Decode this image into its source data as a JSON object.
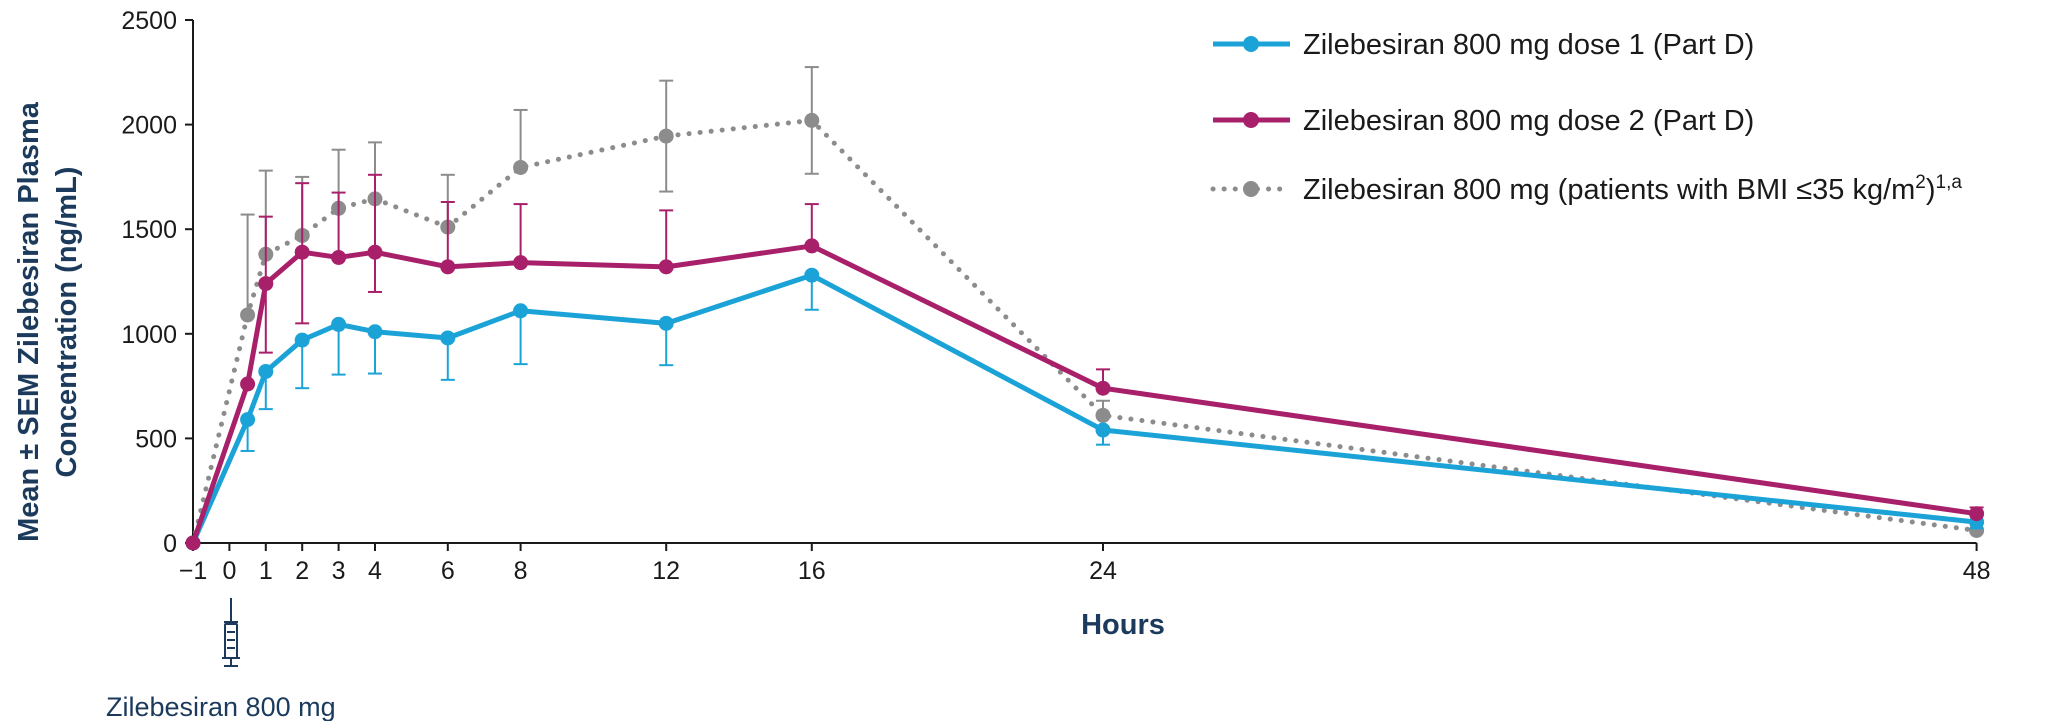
{
  "chart_data": {
    "type": "line",
    "xlabel": "Hours",
    "ylabel_line1": "Mean ± SEM Zilebesiran Plasma",
    "ylabel_line2": "Concentration (ng/mL)",
    "x_ticks": [
      -1,
      0,
      1,
      2,
      3,
      4,
      6,
      8,
      12,
      16,
      24,
      48
    ],
    "x_tick_labels": [
      "−1",
      "0",
      "1",
      "2",
      "3",
      "4",
      "6",
      "8",
      "12",
      "16",
      "24",
      "48"
    ],
    "y_ticks": [
      0,
      500,
      1000,
      1500,
      2000,
      2500
    ],
    "y_tick_labels": [
      "0",
      "500",
      "1000",
      "1500",
      "2000",
      "2500"
    ],
    "ylim": [
      0,
      2500
    ],
    "grid": false,
    "legend_position": "top-right",
    "dose_annotation": "Zilebesiran 800 mg",
    "dose_marker_icon": "syringe-icon",
    "series": [
      {
        "key": "dose1",
        "name": "Zilebesiran 800 mg dose 1 (Part D)",
        "color": "#1ba3d8",
        "style": "solid",
        "x": [
          -1,
          0.5,
          1,
          2,
          3,
          4,
          6,
          8,
          12,
          16,
          24,
          48
        ],
        "y": [
          0,
          590,
          820,
          970,
          1045,
          1010,
          980,
          1110,
          1050,
          1280,
          540,
          100
        ],
        "err_low": [
          0,
          150,
          180,
          230,
          240,
          200,
          200,
          255,
          200,
          165,
          70,
          30
        ],
        "err_high": [
          0,
          0,
          0,
          0,
          0,
          0,
          0,
          0,
          0,
          0,
          0,
          0
        ]
      },
      {
        "key": "dose2",
        "name": "Zilebesiran 800 mg dose 2 (Part D)",
        "color": "#a8206a",
        "style": "solid",
        "x": [
          -1,
          0.5,
          1,
          2,
          3,
          4,
          6,
          8,
          12,
          16,
          24,
          48
        ],
        "y": [
          0,
          760,
          1240,
          1390,
          1365,
          1390,
          1320,
          1340,
          1320,
          1420,
          740,
          140
        ],
        "err_low": [
          0,
          0,
          330,
          340,
          0,
          190,
          0,
          0,
          0,
          0,
          0,
          0
        ],
        "err_high": [
          0,
          0,
          320,
          330,
          310,
          370,
          310,
          280,
          270,
          200,
          90,
          30
        ]
      },
      {
        "key": "bmi",
        "name_prefix": "Zilebesiran 800 mg (patients with BMI ≤35 kg/m",
        "name_sup1": "2",
        "name_suffix": ")",
        "name_sup2": "1,a",
        "color": "#8c8c8c",
        "style": "dotted",
        "x": [
          -1,
          0.5,
          1,
          2,
          3,
          4,
          6,
          8,
          12,
          16,
          24,
          48
        ],
        "y": [
          0,
          1090,
          1380,
          1470,
          1600,
          1645,
          1510,
          1795,
          1945,
          2020,
          610,
          60
        ],
        "err_low": [
          0,
          0,
          0,
          0,
          0,
          0,
          0,
          0,
          265,
          255,
          0,
          0
        ],
        "err_high": [
          0,
          480,
          400,
          280,
          280,
          270,
          250,
          275,
          265,
          255,
          70,
          0
        ]
      }
    ]
  }
}
